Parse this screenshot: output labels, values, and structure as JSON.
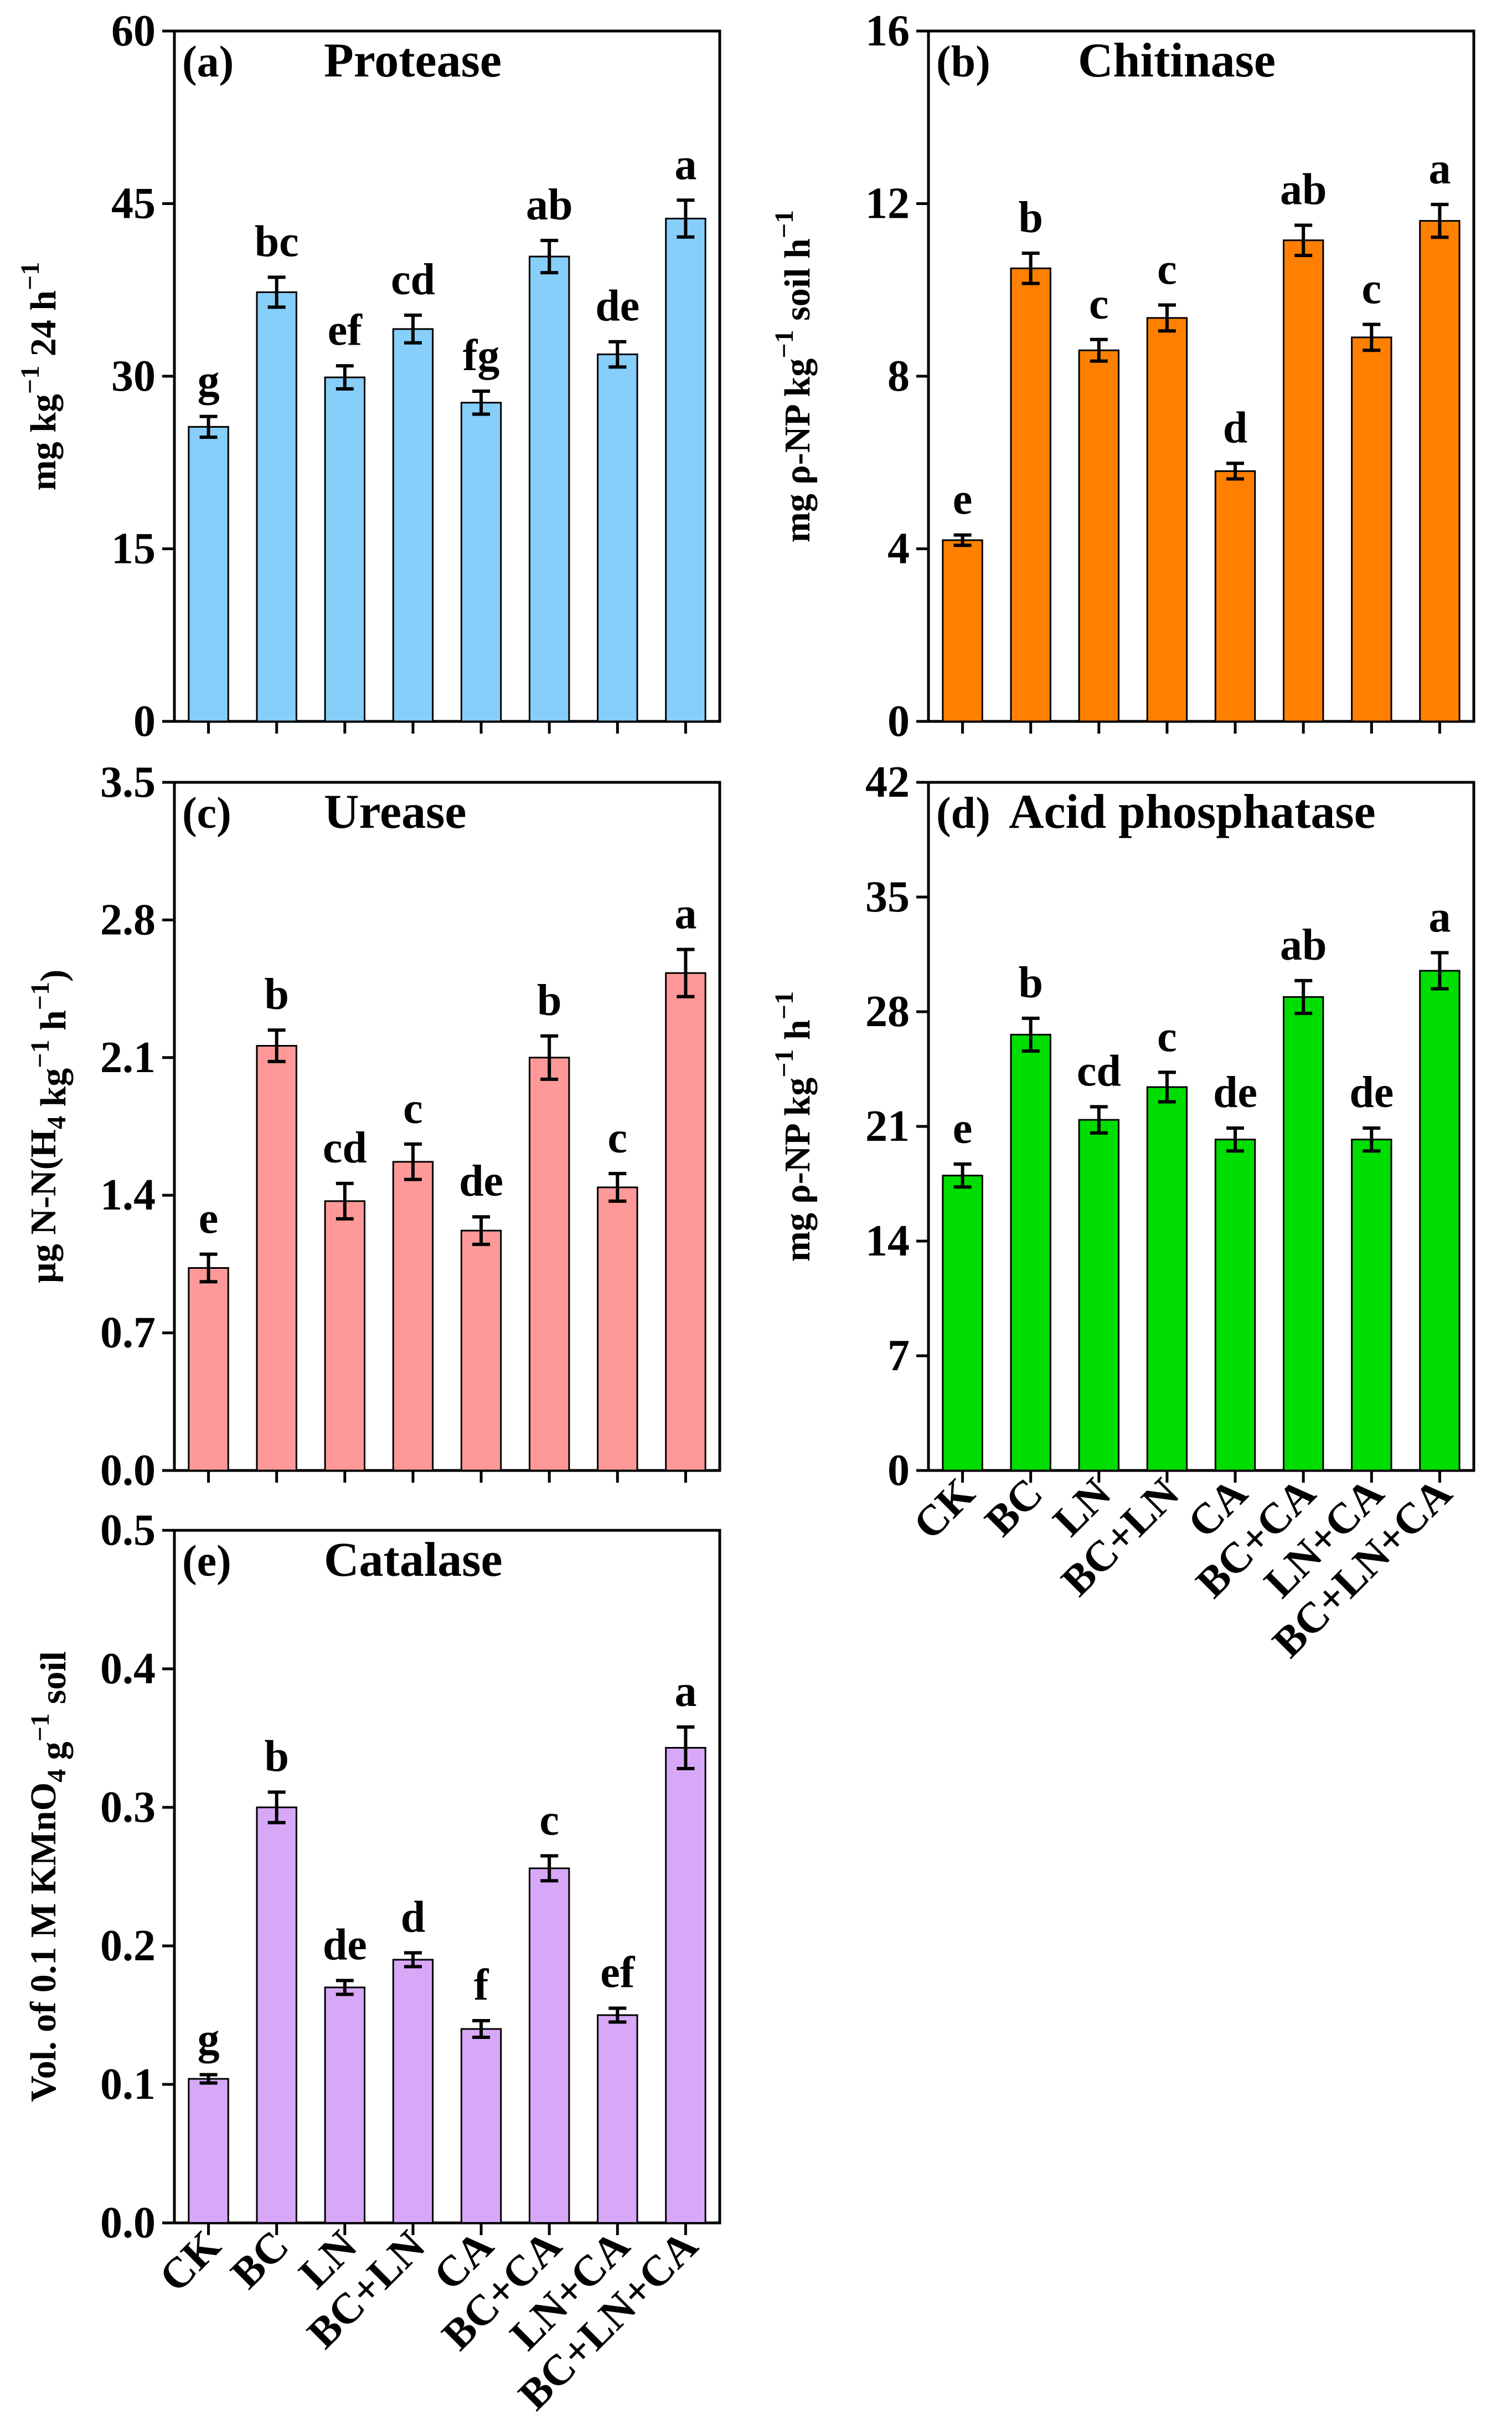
{
  "categories": [
    "CK",
    "BC",
    "LN",
    "BC+LN",
    "CA",
    "BC+CA",
    "LN+CA",
    "BC+LN+CA"
  ],
  "chart_data": [
    {
      "id": "a",
      "type": "bar",
      "panel_label": "(a)",
      "title": "Protease",
      "ylabel": {
        "base": "mg kg",
        "sup1": "−1",
        "mid": " 24 h",
        "sup2": "−1"
      },
      "ylim": [
        0,
        60
      ],
      "yticks": [
        0,
        15,
        30,
        45,
        60
      ],
      "ytick_labels": [
        "0",
        "15",
        "30",
        "45",
        "60"
      ],
      "values": [
        25.6,
        37.3,
        29.9,
        34.1,
        27.7,
        40.4,
        31.9,
        43.7
      ],
      "errors": [
        0.9,
        1.3,
        1.0,
        1.2,
        1.0,
        1.4,
        1.1,
        1.6
      ],
      "letters": [
        "g",
        "bc",
        "ef",
        "cd",
        "fg",
        "ab",
        "de",
        "a"
      ],
      "color": "#87CEFA",
      "show_xlabels": false
    },
    {
      "id": "b",
      "type": "bar",
      "panel_label": "(b)",
      "title": "Chitinase",
      "ylabel": {
        "base": "mg ρ-NP kg",
        "sup1": "−1",
        "mid": " soil h",
        "sup2": "−1"
      },
      "ylim": [
        0,
        16
      ],
      "yticks": [
        0,
        4,
        8,
        12,
        16
      ],
      "ytick_labels": [
        "0",
        "4",
        "8",
        "12",
        "16"
      ],
      "values": [
        4.2,
        10.5,
        8.6,
        9.35,
        5.8,
        11.15,
        8.9,
        11.6
      ],
      "errors": [
        0.12,
        0.35,
        0.25,
        0.3,
        0.18,
        0.35,
        0.3,
        0.38
      ],
      "letters": [
        "e",
        "b",
        "c",
        "c",
        "d",
        "ab",
        "c",
        "a"
      ],
      "color": "#FF8000",
      "show_xlabels": false
    },
    {
      "id": "c",
      "type": "bar",
      "panel_label": "(c)",
      "title": "Urease",
      "ylabel": {
        "base": "µg N-N(H",
        "sub1": "4",
        "mid": " kg",
        "sup1": "−1",
        "mid2": " h",
        "sup2": "−1",
        "tail": ")"
      },
      "ylim": [
        0,
        3.5
      ],
      "yticks": [
        0,
        0.7,
        1.4,
        2.1,
        2.8,
        3.5
      ],
      "ytick_labels": [
        "0.0",
        "0.7",
        "1.4",
        "2.1",
        "2.8",
        "3.5"
      ],
      "values": [
        1.03,
        2.16,
        1.37,
        1.57,
        1.22,
        2.1,
        1.44,
        2.53
      ],
      "errors": [
        0.07,
        0.08,
        0.09,
        0.09,
        0.07,
        0.11,
        0.07,
        0.12
      ],
      "letters": [
        "e",
        "b",
        "cd",
        "c",
        "de",
        "b",
        "c",
        "a"
      ],
      "color": "#FF9999",
      "show_xlabels": false
    },
    {
      "id": "d",
      "type": "bar",
      "panel_label": "(d)",
      "title": "Acid phosphatase",
      "ylabel": {
        "base": "mg ρ-NP kg",
        "sup1": "−1",
        "mid": " h",
        "sup2": "−1"
      },
      "ylim": [
        0,
        42
      ],
      "yticks": [
        0,
        7,
        14,
        21,
        28,
        35,
        42
      ],
      "ytick_labels": [
        "0",
        "7",
        "14",
        "21",
        "28",
        "35",
        "42"
      ],
      "values": [
        18.0,
        26.6,
        21.4,
        23.4,
        20.2,
        28.9,
        20.2,
        30.5
      ],
      "errors": [
        0.7,
        1.0,
        0.8,
        0.9,
        0.7,
        1.0,
        0.7,
        1.1
      ],
      "letters": [
        "e",
        "b",
        "cd",
        "c",
        "de",
        "ab",
        "de",
        "a"
      ],
      "color": "#00DD00",
      "show_xlabels": true
    },
    {
      "id": "e",
      "type": "bar",
      "panel_label": "(e)",
      "title": "Catalase",
      "ylabel": {
        "base": "Vol. of 0.1 M KMnO",
        "sub1": "4",
        "mid": " g",
        "sup1": "−1",
        "mid2": " soil"
      },
      "ylim": [
        0,
        0.5
      ],
      "yticks": [
        0,
        0.1,
        0.2,
        0.3,
        0.4,
        0.5
      ],
      "ytick_labels": [
        "0.0",
        "0.1",
        "0.2",
        "0.3",
        "0.4",
        "0.5"
      ],
      "values": [
        0.104,
        0.3,
        0.17,
        0.19,
        0.14,
        0.256,
        0.15,
        0.343
      ],
      "errors": [
        0.003,
        0.011,
        0.005,
        0.005,
        0.006,
        0.009,
        0.005,
        0.015
      ],
      "letters": [
        "g",
        "b",
        "de",
        "d",
        "f",
        "c",
        "ef",
        "a"
      ],
      "color": "#D8A8F8",
      "show_xlabels": true
    }
  ]
}
